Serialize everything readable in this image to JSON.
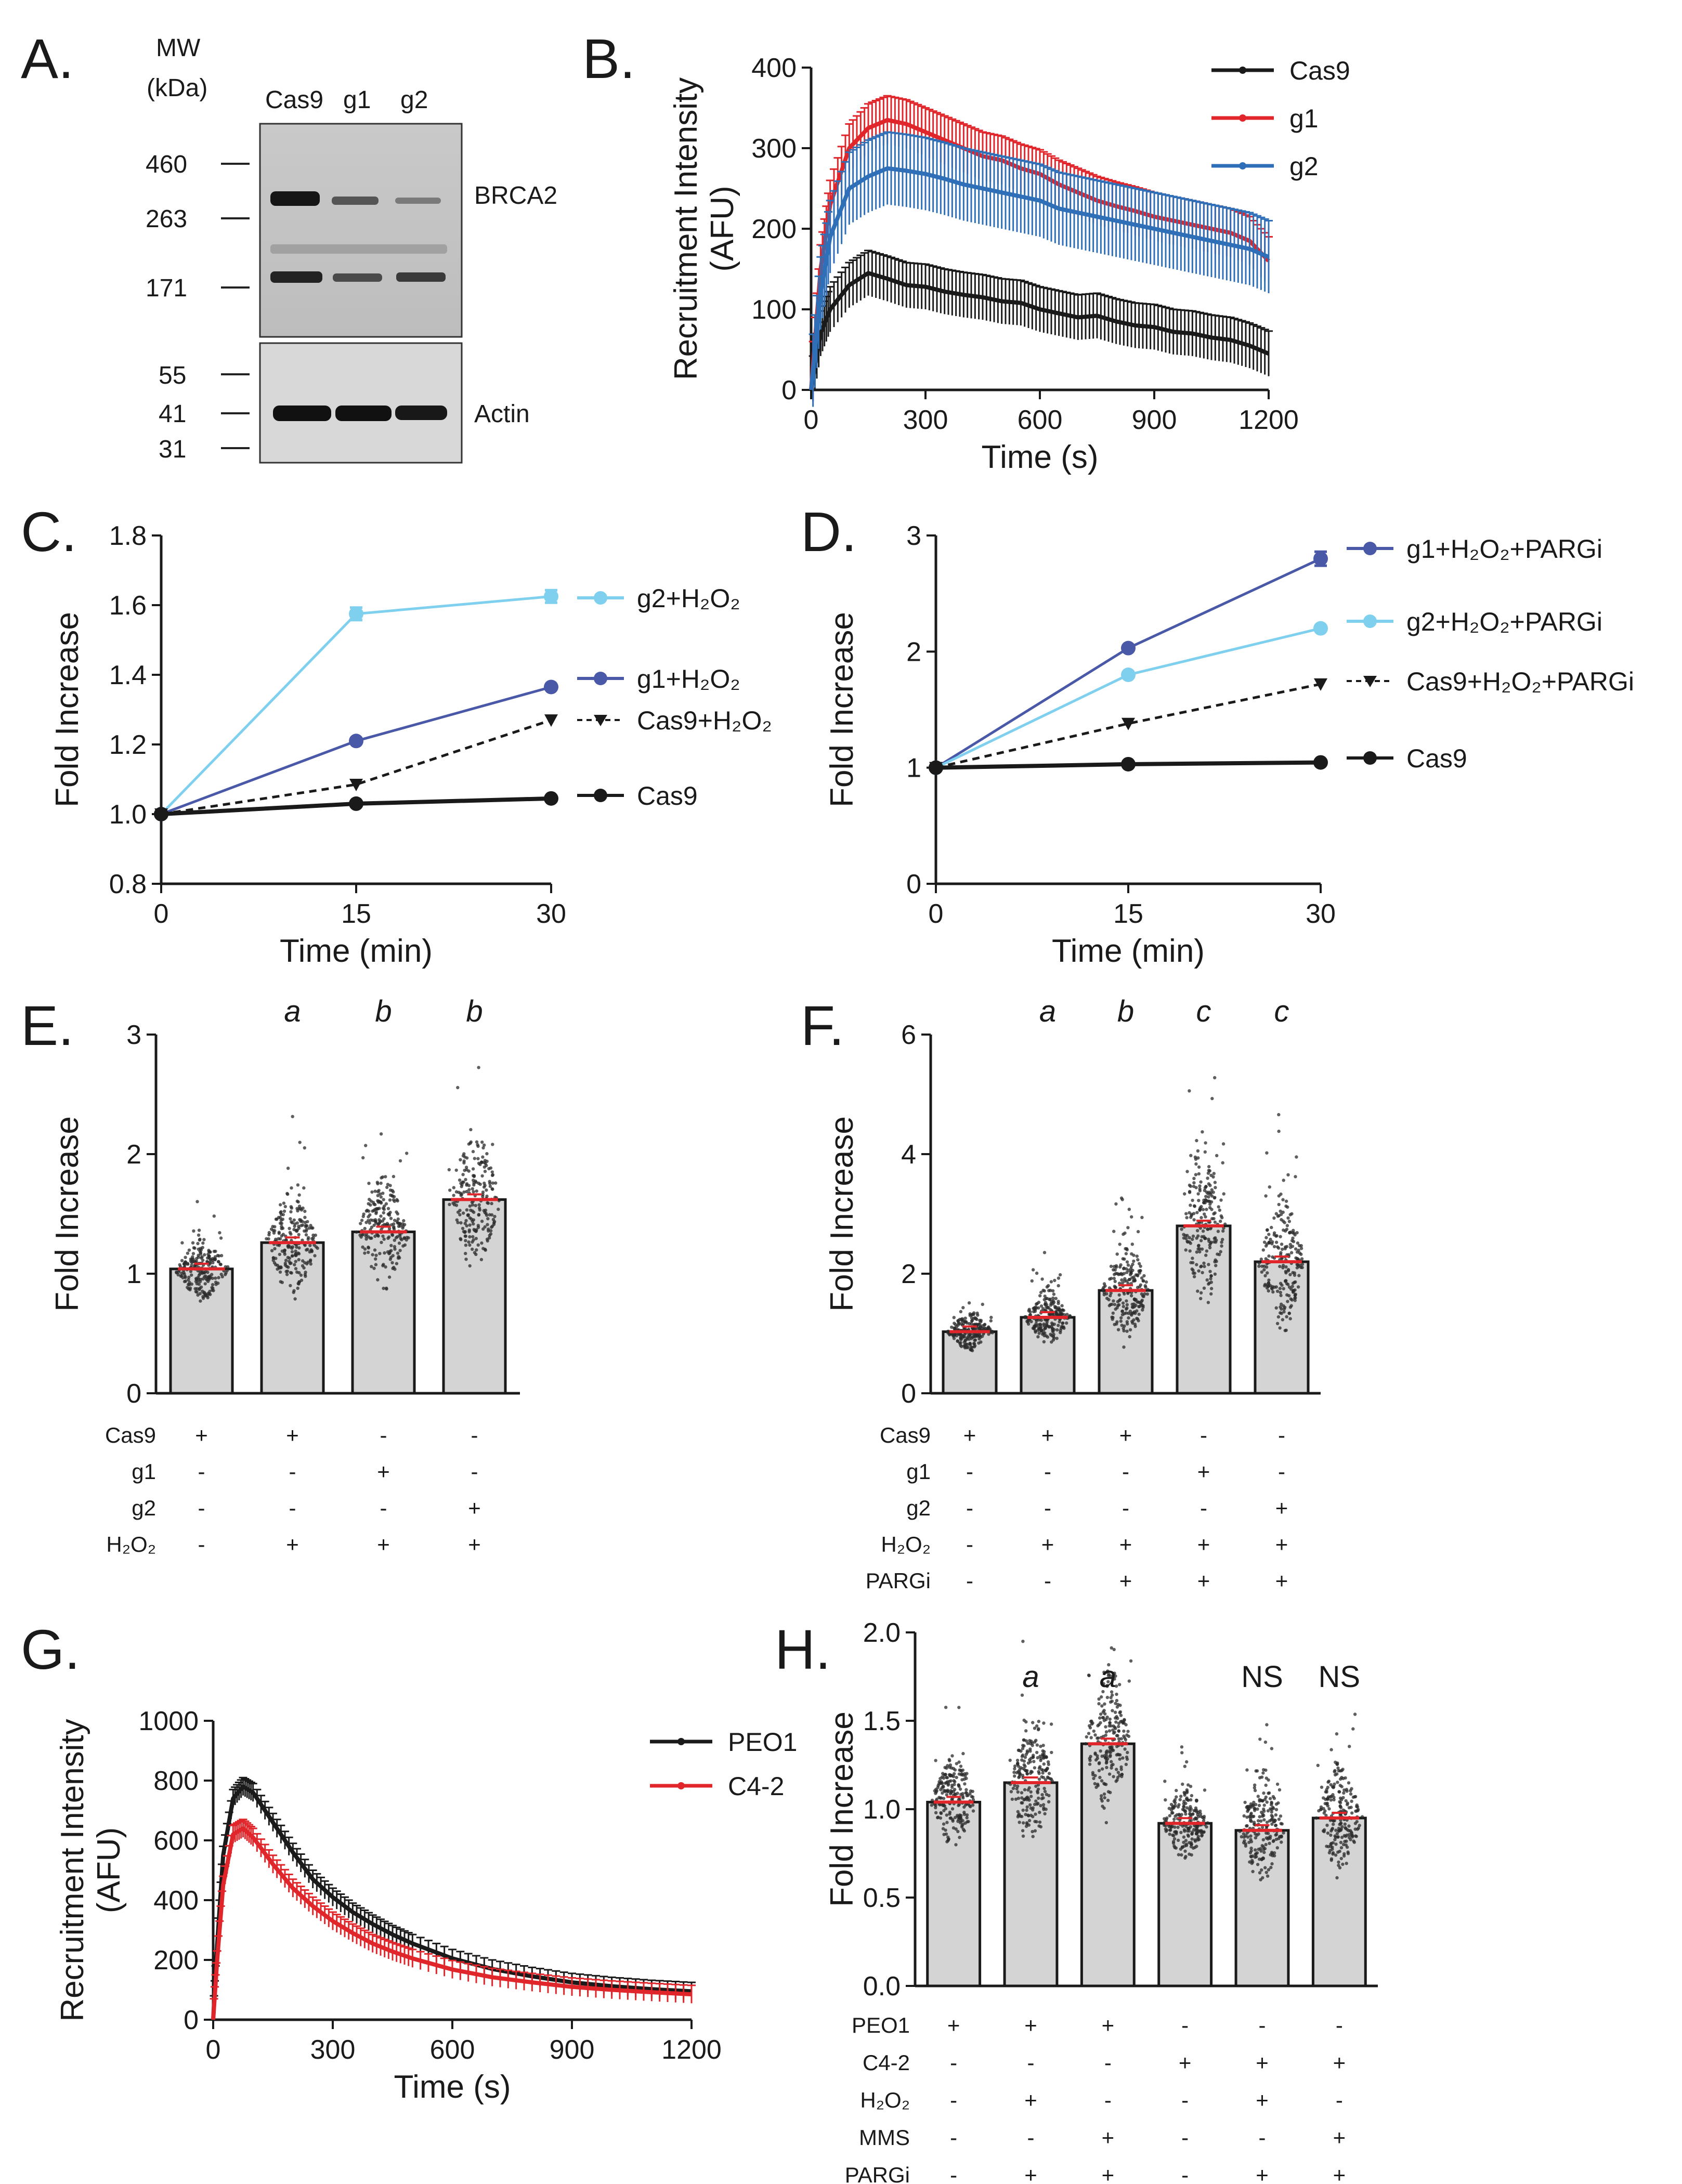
{
  "panel_labels": {
    "A": "A.",
    "B": "B.",
    "C": "C.",
    "D": "D.",
    "E": "E.",
    "F": "F.",
    "G": "G.",
    "H": "H."
  },
  "blot": {
    "mw_label": "MW",
    "kda_label": "(kDa)",
    "lanes": [
      "Cas9",
      "g1",
      "g2"
    ],
    "mw_top": [
      "460",
      "263",
      "171"
    ],
    "mw_bottom": [
      "55",
      "41",
      "31"
    ],
    "protein_top": "BRCA2",
    "protein_bottom": "Actin"
  },
  "chart_data": [
    {
      "id": "B",
      "type": "line",
      "xlabel": "Time (s)",
      "ylabel": "Recruitment Intensity (AFU)",
      "ylabel_lines": [
        "Recruitment Intensity",
        "(AFU)"
      ],
      "xlim": [
        0,
        1200
      ],
      "ylim": [
        0,
        400
      ],
      "xticks": [
        "0",
        "300",
        "600",
        "900",
        "1200"
      ],
      "yticks": [
        "0",
        "100",
        "200",
        "300",
        "400"
      ],
      "series": [
        {
          "name": "Cas9",
          "color": "#1a1a1a",
          "x": [
            0,
            25,
            50,
            100,
            150,
            200,
            250,
            300,
            350,
            400,
            450,
            500,
            550,
            600,
            650,
            700,
            750,
            800,
            850,
            900,
            950,
            1000,
            1050,
            1100,
            1150,
            1200
          ],
          "y": [
            0,
            70,
            100,
            130,
            145,
            138,
            130,
            128,
            122,
            118,
            115,
            110,
            108,
            100,
            95,
            90,
            92,
            85,
            80,
            78,
            72,
            70,
            65,
            62,
            55,
            45
          ],
          "err": 28
        },
        {
          "name": "g1",
          "color": "#e0262a",
          "x": [
            0,
            25,
            50,
            100,
            150,
            200,
            250,
            300,
            350,
            400,
            450,
            500,
            550,
            600,
            650,
            700,
            750,
            800,
            850,
            900,
            950,
            1000,
            1050,
            1100,
            1150,
            1200
          ],
          "y": [
            0,
            150,
            230,
            300,
            325,
            335,
            330,
            320,
            310,
            300,
            290,
            285,
            275,
            268,
            255,
            245,
            235,
            228,
            222,
            215,
            210,
            205,
            200,
            195,
            185,
            160
          ],
          "err": 30
        },
        {
          "name": "g2",
          "color": "#2e6fb7",
          "x": [
            0,
            25,
            50,
            100,
            150,
            200,
            250,
            300,
            350,
            400,
            450,
            500,
            550,
            600,
            650,
            700,
            750,
            800,
            850,
            900,
            950,
            1000,
            1050,
            1100,
            1150,
            1200
          ],
          "y": [
            0,
            120,
            190,
            250,
            265,
            275,
            272,
            268,
            262,
            255,
            250,
            245,
            240,
            235,
            225,
            220,
            215,
            210,
            205,
            200,
            195,
            190,
            185,
            180,
            175,
            165
          ],
          "err": 45
        }
      ]
    },
    {
      "id": "C",
      "type": "line",
      "xlabel": "Time (min)",
      "ylabel": "Fold Increase",
      "xlim": [
        0,
        30
      ],
      "ylim": [
        0.8,
        1.8
      ],
      "xticks": [
        "0",
        "15",
        "30"
      ],
      "yticks": [
        "0.8",
        "1.0",
        "1.2",
        "1.4",
        "1.6",
        "1.8"
      ],
      "series": [
        {
          "name": "g2+H₂O₂",
          "color": "#7fd0ee",
          "marker": "circle",
          "dashed": false,
          "x": [
            0,
            15,
            30
          ],
          "y": [
            1.0,
            1.575,
            1.625
          ],
          "err": [
            0,
            0.018,
            0.018
          ]
        },
        {
          "name": "g1+H₂O₂",
          "color": "#4a58a8",
          "marker": "circle",
          "dashed": false,
          "x": [
            0,
            15,
            30
          ],
          "y": [
            1.0,
            1.21,
            1.365
          ],
          "err": [
            0,
            0.005,
            0.005
          ]
        },
        {
          "name": "Cas9+H₂O₂",
          "color": "#1a1a1a",
          "marker": "triangle",
          "dashed": true,
          "x": [
            0,
            15,
            30
          ],
          "y": [
            1.0,
            1.085,
            1.27
          ],
          "err": [
            0,
            0,
            0
          ]
        },
        {
          "name": "Cas9",
          "color": "#1a1a1a",
          "marker": "circle",
          "dashed": false,
          "x": [
            0,
            15,
            30
          ],
          "y": [
            1.0,
            1.03,
            1.045
          ],
          "err": [
            0,
            0,
            0
          ]
        }
      ]
    },
    {
      "id": "D",
      "type": "line",
      "xlabel": "Time (min)",
      "ylabel": "Fold Increase",
      "xlim": [
        0,
        30
      ],
      "ylim": [
        0,
        3
      ],
      "xticks": [
        "0",
        "15",
        "30"
      ],
      "yticks": [
        "0",
        "1",
        "2",
        "3"
      ],
      "series": [
        {
          "name": "g1+H₂O₂+PARGi",
          "color": "#4a58a8",
          "marker": "circle",
          "dashed": false,
          "x": [
            0,
            15,
            30
          ],
          "y": [
            1.0,
            2.03,
            2.8
          ],
          "err": [
            0,
            0,
            0.06
          ]
        },
        {
          "name": "g2+H₂O₂+PARGi",
          "color": "#7fd0ee",
          "marker": "circle",
          "dashed": false,
          "x": [
            0,
            15,
            30
          ],
          "y": [
            1.0,
            1.8,
            2.2
          ],
          "err": [
            0,
            0,
            0
          ]
        },
        {
          "name": "Cas9+H₂O₂+PARGi",
          "color": "#1a1a1a",
          "marker": "triangle",
          "dashed": true,
          "x": [
            0,
            15,
            30
          ],
          "y": [
            1.0,
            1.38,
            1.72
          ],
          "err": [
            0,
            0,
            0
          ]
        },
        {
          "name": "Cas9",
          "color": "#1a1a1a",
          "marker": "circle",
          "dashed": false,
          "x": [
            0,
            15,
            30
          ],
          "y": [
            1.0,
            1.03,
            1.045
          ],
          "err": [
            0,
            0,
            0
          ]
        }
      ]
    },
    {
      "id": "E",
      "type": "bar",
      "ylabel": "Fold Increase",
      "ylim": [
        0,
        3
      ],
      "yticks": [
        "0",
        "1",
        "2",
        "3"
      ],
      "values": [
        1.04,
        1.26,
        1.35,
        1.62
      ],
      "spread": [
        0.25,
        0.45,
        0.45,
        0.55
      ],
      "significance": [
        "",
        "a",
        "b",
        "b"
      ],
      "conditions": [
        {
          "label": "Cas9",
          "marks": [
            "+",
            "+",
            "-",
            "-"
          ]
        },
        {
          "label": "g1",
          "marks": [
            "-",
            "-",
            "+",
            "-"
          ]
        },
        {
          "label": "g2",
          "marks": [
            "-",
            "-",
            "-",
            "+"
          ]
        },
        {
          "label": "H₂O₂",
          "marks": [
            "-",
            "+",
            "+",
            "+"
          ]
        }
      ]
    },
    {
      "id": "F",
      "type": "bar",
      "ylabel": "Fold Increase",
      "ylim": [
        0,
        6
      ],
      "yticks": [
        "0",
        "2",
        "4",
        "6"
      ],
      "values": [
        1.03,
        1.27,
        1.72,
        2.8,
        2.2
      ],
      "spread": [
        0.3,
        0.45,
        0.85,
        1.3,
        1.2
      ],
      "significance": [
        "",
        "a",
        "b",
        "c",
        "c"
      ],
      "conditions": [
        {
          "label": "Cas9",
          "marks": [
            "+",
            "+",
            "+",
            "-",
            "-"
          ]
        },
        {
          "label": "g1",
          "marks": [
            "-",
            "-",
            "-",
            "+",
            "-"
          ]
        },
        {
          "label": "g2",
          "marks": [
            "-",
            "-",
            "-",
            "-",
            "+"
          ]
        },
        {
          "label": "H₂O₂",
          "marks": [
            "-",
            "+",
            "+",
            "+",
            "+"
          ]
        },
        {
          "label": "PARGi",
          "marks": [
            "-",
            "-",
            "+",
            "+",
            "+"
          ]
        }
      ]
    },
    {
      "id": "G",
      "type": "line",
      "xlabel": "Time (s)",
      "ylabel": "Recruitment Intensity (AFU)",
      "ylabel_lines": [
        "Recruitment Intensity",
        "(AFU)"
      ],
      "xlim": [
        0,
        1200
      ],
      "ylim": [
        0,
        1000
      ],
      "xticks": [
        "0",
        "300",
        "600",
        "900",
        "1200"
      ],
      "yticks": [
        "0",
        "200",
        "400",
        "600",
        "800",
        "1000"
      ],
      "series": [
        {
          "name": "PEO1",
          "color": "#1a1a1a",
          "x": [
            0,
            10,
            25,
            50,
            75,
            100,
            150,
            200,
            250,
            300,
            350,
            400,
            450,
            500,
            600,
            700,
            800,
            900,
            1000,
            1100,
            1200
          ],
          "y": [
            0,
            250,
            550,
            740,
            780,
            760,
            660,
            560,
            470,
            410,
            360,
            320,
            285,
            255,
            205,
            170,
            145,
            125,
            112,
            102,
            95
          ],
          "err": 30
        },
        {
          "name": "C4-2",
          "color": "#e0262a",
          "x": [
            0,
            10,
            25,
            50,
            75,
            100,
            150,
            200,
            250,
            300,
            350,
            400,
            450,
            500,
            600,
            700,
            800,
            900,
            1000,
            1100,
            1200
          ],
          "y": [
            0,
            200,
            450,
            620,
            640,
            610,
            520,
            440,
            380,
            330,
            290,
            255,
            228,
            205,
            168,
            142,
            125,
            110,
            100,
            92,
            85
          ],
          "err": 30
        }
      ]
    },
    {
      "id": "H",
      "type": "bar",
      "ylabel": "Fold Increase",
      "ylim": [
        0,
        2
      ],
      "yticks": [
        "0.0",
        "0.5",
        "1.0",
        "1.5",
        "2.0"
      ],
      "values": [
        1.04,
        1.15,
        1.37,
        0.92,
        0.88,
        0.95
      ],
      "spread": [
        0.25,
        0.35,
        0.4,
        0.2,
        0.3,
        0.3
      ],
      "significance": [
        "",
        "a",
        "a",
        "",
        "NS",
        "NS"
      ],
      "conditions": [
        {
          "label": "PEO1",
          "marks": [
            "+",
            "+",
            "+",
            "-",
            "-",
            "-"
          ]
        },
        {
          "label": "C4-2",
          "marks": [
            "-",
            "-",
            "-",
            "+",
            "+",
            "+"
          ]
        },
        {
          "label": "H₂O₂",
          "marks": [
            "-",
            "+",
            "-",
            "-",
            "+",
            "-"
          ]
        },
        {
          "label": "MMS",
          "marks": [
            "-",
            "-",
            "+",
            "-",
            "-",
            "+"
          ]
        },
        {
          "label": "PARGi",
          "marks": [
            "-",
            "+",
            "+",
            "-",
            "+",
            "+"
          ]
        }
      ]
    }
  ]
}
